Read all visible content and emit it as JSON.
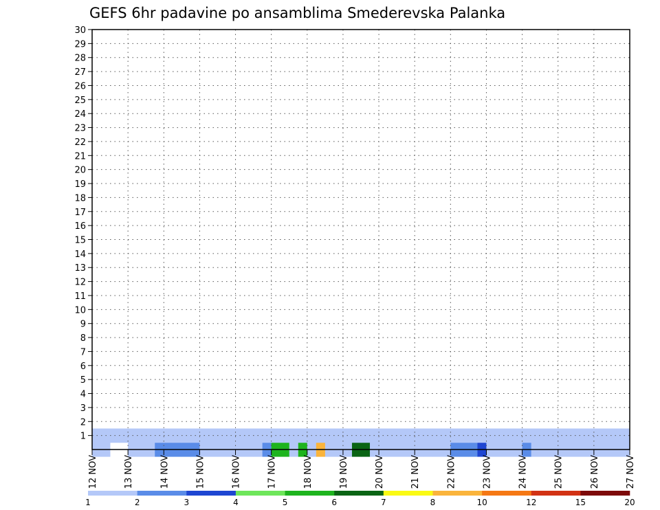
{
  "chart_data": {
    "type": "heatmap",
    "title": "GEFS 6hr padavine po ansamblima Smederevska Palanka",
    "xlabel": "",
    "ylabel": "",
    "x_ticks": [
      "12 NOV",
      "13 NOV",
      "14 NOV",
      "15 NOV",
      "16 NOV",
      "17 NOV",
      "18 NOV",
      "19 NOV",
      "20 NOV",
      "21 NOV",
      "22 NOV",
      "23 NOV",
      "24 NOV",
      "25 NOV",
      "26 NOV",
      "27 NOV"
    ],
    "y_ticks": [
      1,
      2,
      3,
      4,
      5,
      6,
      7,
      8,
      9,
      10,
      11,
      12,
      13,
      14,
      15,
      16,
      17,
      18,
      19,
      20,
      21,
      22,
      23,
      24,
      25,
      26,
      27,
      28,
      29,
      30
    ],
    "xlim": [
      0,
      60
    ],
    "ylim": [
      0,
      30
    ],
    "grid": true,
    "colorbar": {
      "labels": [
        "1",
        "2",
        "3",
        "4",
        "5",
        "6",
        "7",
        "8",
        "10",
        "12",
        "15",
        "20"
      ],
      "colors": [
        "#b4c8f8",
        "#5a8ce8",
        "#1e46d2",
        "#6ee65a",
        "#1eb41e",
        "#0a6414",
        "#fafa14",
        "#fab43c",
        "#f57814",
        "#d23214",
        "#7d0a0a"
      ]
    },
    "cells": [
      [
        0,
        0.5,
        1
      ],
      [
        0,
        1.5,
        1
      ],
      [
        0,
        4.5,
        1
      ],
      [
        0,
        5.5,
        1
      ],
      [
        0,
        6.5,
        1
      ],
      [
        0,
        7.5,
        2
      ],
      [
        0,
        8.5,
        2
      ],
      [
        0,
        9.5,
        2
      ],
      [
        0,
        10.5,
        2
      ],
      [
        0,
        11.5,
        2
      ],
      [
        0,
        12.5,
        1
      ],
      [
        0,
        13.5,
        1
      ],
      [
        0,
        14.5,
        1
      ],
      [
        0,
        15.5,
        1
      ],
      [
        0,
        16.5,
        1
      ],
      [
        0,
        17.5,
        1
      ],
      [
        0,
        18.5,
        1
      ],
      [
        0,
        19.5,
        2
      ],
      [
        0,
        20.5,
        5
      ],
      [
        0,
        21.5,
        5
      ],
      [
        0,
        22.5,
        1
      ],
      [
        0,
        23.5,
        5
      ],
      [
        0,
        24.5,
        1
      ],
      [
        0,
        25.5,
        8
      ],
      [
        0,
        26.5,
        1
      ],
      [
        0,
        27.5,
        1
      ],
      [
        0,
        28.5,
        1
      ],
      [
        0,
        29.5,
        6
      ],
      [
        0,
        30.5,
        6
      ],
      [
        0,
        31.5,
        1
      ],
      [
        0,
        32.5,
        1
      ],
      [
        0,
        33.5,
        1
      ],
      [
        0,
        34.5,
        1
      ],
      [
        0,
        35.5,
        1
      ],
      [
        0,
        36.5,
        1
      ],
      [
        0,
        37.5,
        1
      ],
      [
        0,
        38.5,
        1
      ],
      [
        0,
        39.5,
        1
      ],
      [
        0,
        40.5,
        2
      ],
      [
        0,
        41.5,
        2
      ],
      [
        0,
        42.5,
        2
      ],
      [
        0,
        43.5,
        3
      ],
      [
        0,
        44.5,
        1
      ],
      [
        0,
        45.5,
        1
      ],
      [
        0,
        46.5,
        1
      ],
      [
        0,
        47.5,
        1
      ],
      [
        0,
        48.5,
        2
      ],
      [
        0,
        49.5,
        1
      ],
      [
        0,
        50.5,
        1
      ],
      [
        0,
        51.5,
        1
      ],
      [
        0,
        52.5,
        1
      ],
      [
        0,
        53.5,
        1
      ],
      [
        0,
        54.5,
        1
      ],
      [
        0,
        55.5,
        1
      ],
      [
        0,
        56.5,
        1
      ],
      [
        0,
        57.5,
        1
      ],
      [
        0,
        58.5,
        1
      ],
      [
        0,
        59.5,
        1
      ],
      [
        1,
        0.5,
        1
      ],
      [
        1,
        1.5,
        1
      ],
      [
        1,
        2.5,
        1
      ],
      [
        1,
        3.5,
        1
      ],
      [
        1,
        4.5,
        1
      ],
      [
        1,
        5.5,
        1
      ],
      [
        1,
        6.5,
        1
      ],
      [
        1,
        7.5,
        1
      ],
      [
        1,
        8.5,
        1
      ],
      [
        1,
        9.5,
        1
      ],
      [
        1,
        10.5,
        1
      ],
      [
        1,
        11.5,
        1
      ],
      [
        1,
        12.5,
        1
      ],
      [
        1,
        13.5,
        1
      ],
      [
        1,
        14.5,
        1
      ],
      [
        1,
        15.5,
        1
      ],
      [
        1,
        16.5,
        1
      ],
      [
        1,
        17.5,
        1
      ],
      [
        1,
        18.5,
        1
      ],
      [
        1,
        19.5,
        1
      ],
      [
        1,
        20.5,
        1
      ],
      [
        1,
        21.5,
        1
      ],
      [
        1,
        22.5,
        1
      ],
      [
        1,
        23.5,
        1
      ],
      [
        1,
        24.5,
        1
      ],
      [
        1,
        25.5,
        1
      ],
      [
        1,
        26.5,
        1
      ],
      [
        1,
        27.5,
        1
      ],
      [
        1,
        28.5,
        1
      ],
      [
        1,
        29.5,
        1
      ],
      [
        1,
        30.5,
        1
      ],
      [
        1,
        31.5,
        1
      ],
      [
        1,
        32.5,
        1
      ],
      [
        1,
        33.5,
        1
      ],
      [
        1,
        34.5,
        1
      ],
      [
        1,
        35.5,
        1
      ],
      [
        1,
        36.5,
        1
      ],
      [
        1,
        37.5,
        1
      ],
      [
        1,
        38.5,
        1
      ],
      [
        1,
        39.5,
        1
      ],
      [
        1,
        40.5,
        1
      ],
      [
        1,
        41.5,
        1
      ],
      [
        1,
        42.5,
        1
      ],
      [
        1,
        43.5,
        1
      ],
      [
        1,
        44.5,
        1
      ],
      [
        1,
        45.5,
        1
      ],
      [
        1,
        46.5,
        1
      ],
      [
        1,
        47.5,
        1
      ],
      [
        1,
        48.5,
        1
      ],
      [
        1,
        49.5,
        1
      ],
      [
        1,
        50.5,
        1
      ],
      [
        1,
        51.5,
        1
      ],
      [
        1,
        52.5,
        1
      ],
      [
        1,
        53.5,
        1
      ],
      [
        1,
        54.5,
        1
      ],
      [
        1,
        55.5,
        1
      ],
      [
        1,
        56.5,
        1
      ],
      [
        1,
        57.5,
        1
      ],
      [
        1,
        58.5,
        1
      ],
      [
        1,
        59.5,
        1
      ]
    ]
  }
}
